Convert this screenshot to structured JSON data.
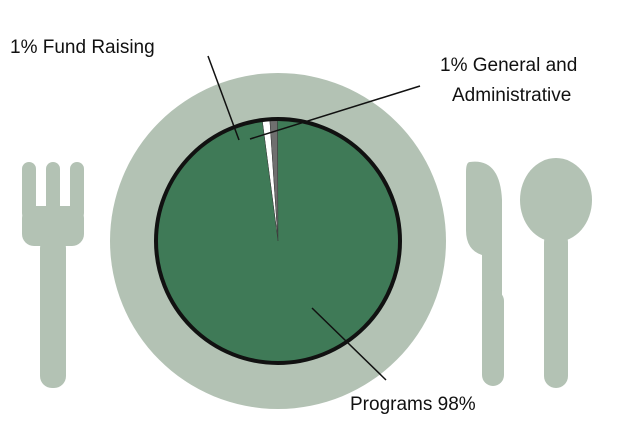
{
  "chart_data": {
    "type": "pie",
    "title": "",
    "slices": [
      {
        "label": "1% Fund Raising",
        "value": 1,
        "color": "#ffffff"
      },
      {
        "label": "1% General and Administrative",
        "value": 1,
        "color": "#6f6f6f"
      },
      {
        "label": "Programs 98%",
        "value": 98,
        "color": "#3f7a57"
      }
    ],
    "labels": {
      "fund_raising": "1% Fund Raising",
      "general_line1": "1% General and",
      "general_line2": "Administrative",
      "programs": "Programs 98%"
    },
    "decoration": {
      "plate_color": "#b3c2b4",
      "cutlery_color": "#b3c2b4",
      "rim_color": "#111111"
    }
  }
}
